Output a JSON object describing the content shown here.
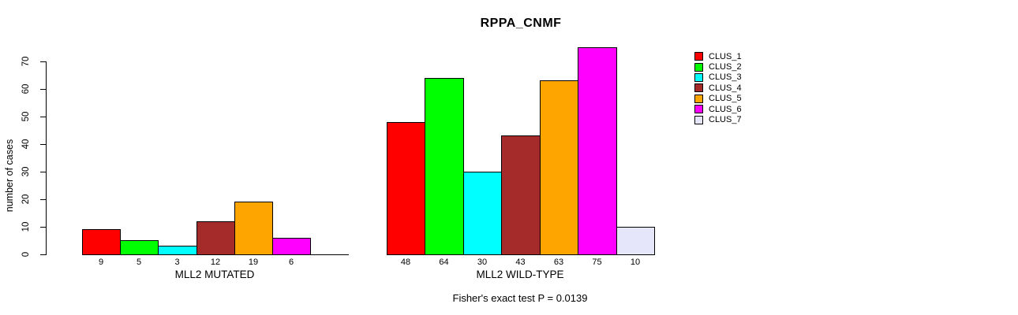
{
  "chart_data": {
    "type": "bar",
    "title": "RPPA_CNMF",
    "ylabel": "number of cases",
    "ylim": [
      0,
      70
    ],
    "yticks": [
      0,
      10,
      20,
      30,
      40,
      50,
      60,
      70
    ],
    "grid": false,
    "categories": [
      "CLUS_1",
      "CLUS_2",
      "CLUS_3",
      "CLUS_4",
      "CLUS_5",
      "CLUS_6",
      "CLUS_7"
    ],
    "colors": [
      "#FF0000",
      "#00FF00",
      "#00FFFF",
      "#A52A2A",
      "#FFA500",
      "#FF00FF",
      "#E6E6FA"
    ],
    "groups": [
      {
        "xlabel": "MLL2 MUTATED",
        "values": [
          9,
          5,
          3,
          12,
          19,
          6,
          0
        ],
        "bar_labels": [
          "9",
          "5",
          "3",
          "12",
          "19",
          "6",
          ""
        ]
      },
      {
        "xlabel": "MLL2 WILD-TYPE",
        "values": [
          48,
          64,
          30,
          43,
          63,
          75,
          10
        ],
        "bar_labels": [
          "48",
          "64",
          "30",
          "43",
          "63",
          "75",
          "10"
        ]
      }
    ],
    "annotation": "Fisher's exact test P = 0.0139",
    "legend": {
      "position": "right",
      "items": [
        {
          "label": "CLUS_1",
          "color": "#FF0000"
        },
        {
          "label": "CLUS_2",
          "color": "#00FF00"
        },
        {
          "label": "CLUS_3",
          "color": "#00FFFF"
        },
        {
          "label": "CLUS_4",
          "color": "#A52A2A"
        },
        {
          "label": "CLUS_5",
          "color": "#FFA500"
        },
        {
          "label": "CLUS_6",
          "color": "#FF00FF"
        },
        {
          "label": "CLUS_7",
          "color": "#E6E6FA"
        }
      ]
    }
  }
}
